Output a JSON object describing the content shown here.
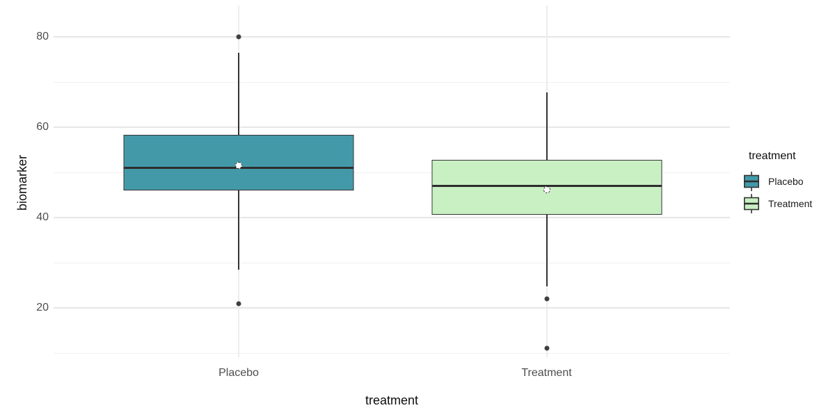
{
  "figure": {
    "background": "#ffffff"
  },
  "axes": {
    "y_title": "biomarker",
    "x_title": "treatment",
    "y_tick_labels": [
      "80",
      "60",
      "40",
      "20"
    ],
    "x_tick_labels": [
      "Placebo",
      "Treatment"
    ]
  },
  "legend": {
    "title": "treatment",
    "items": [
      {
        "label": "Placebo",
        "fill": "#4499a9"
      },
      {
        "label": "Treatment",
        "fill": "#c8f0c3"
      }
    ]
  },
  "chart_data": {
    "type": "boxplot",
    "orientation": "vertical",
    "title": "",
    "xlabel": "treatment",
    "ylabel": "biomarker",
    "categories": [
      "Placebo",
      "Treatment"
    ],
    "y_ticks_major": [
      20,
      40,
      60,
      80
    ],
    "y_ticks_minor": [
      10,
      30,
      50,
      70
    ],
    "ylim": [
      9,
      87
    ],
    "grid": "horizontal major+minor, vertical at categories",
    "legend_position": "right",
    "legend_title": "treatment",
    "series": [
      {
        "name": "Placebo",
        "fill": "#4499a9",
        "whisker_low": 28.5,
        "q1": 46,
        "median": 51,
        "q3": 58.3,
        "whisker_high": 76.5,
        "mean": 51.6,
        "outliers": [
          80,
          21
        ]
      },
      {
        "name": "Treatment",
        "fill": "#c8f0c3",
        "whisker_low": 24.8,
        "q1": 40.7,
        "median": 47,
        "q3": 52.8,
        "whisker_high": 67.8,
        "mean": 46.2,
        "outliers": [
          22,
          11.2
        ]
      }
    ],
    "style": {
      "box_border_color": "#333333",
      "median_color": "#2d2d2d",
      "whisker_color": "#333333",
      "outlier_color": "#3f3f3f",
      "mean_marker": "white circle, dashed dark outline",
      "grid_major_color": "#e6e6e6",
      "grid_minor_color": "#f0f0f0",
      "tick_label_color": "#4d4d4d",
      "axis_title_color": "#0d0d0d"
    }
  }
}
